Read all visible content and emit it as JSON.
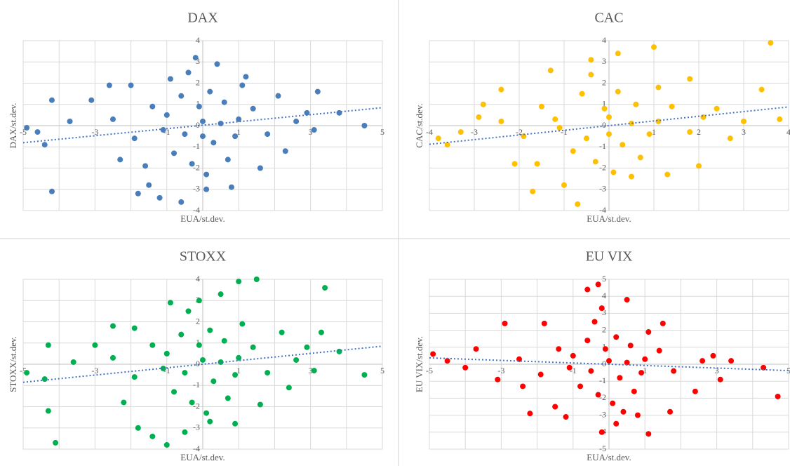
{
  "chart_data": [
    {
      "type": "scatter",
      "title": "DAX",
      "xlabel": "EUA/st.dev.",
      "ylabel": "DAX/st.dev.",
      "color": "#4a7ebb",
      "xlim": [
        -5,
        5
      ],
      "ylim": [
        -4,
        4
      ],
      "xticks": [
        -5,
        -3,
        -1,
        1,
        3,
        5
      ],
      "x_minor_ticks": [
        -4,
        -2,
        2,
        4
      ],
      "yticks": [
        -4,
        -3,
        -2,
        -1,
        0,
        1,
        2,
        3,
        4
      ],
      "grid": true,
      "trendline": {
        "slope": 0.165,
        "intercept": 0.02
      },
      "x": [
        -4.9,
        -4.4,
        -4.2,
        -4.2,
        -4.6,
        -3.7,
        -3.1,
        -2.6,
        -2.3,
        -2.0,
        -1.8,
        -1.5,
        -1.2,
        -0.9,
        -0.6,
        -0.2,
        0.1,
        0.4,
        0.8,
        1.2,
        1.6,
        2.1,
        2.3,
        2.9,
        3.1,
        3.2,
        4.5,
        3.8,
        -1.0,
        -0.5,
        0,
        0.3,
        0.6,
        -0.8,
        1.0,
        -1.4,
        0.2,
        -0.3,
        0.9,
        1.4,
        -1.9,
        -0.1,
        0.5,
        -0.6,
        1.8,
        -1.1,
        0.7,
        -2.5,
        2.6,
        -0.4,
        0.1,
        1.1,
        -1.6,
        0.0
      ],
      "values": [
        -0.1,
        -0.9,
        1.2,
        -3.1,
        -0.3,
        0.2,
        1.2,
        1.9,
        -1.6,
        1.9,
        -3.2,
        -2.8,
        -3.4,
        2.2,
        -3.6,
        3.2,
        -3.0,
        2.9,
        -2.9,
        2.3,
        -2.0,
        1.4,
        -1.2,
        0.6,
        -0.2,
        1.6,
        0.0,
        0.6,
        0.5,
        -0.4,
        0.2,
        -0.8,
        1.1,
        -1.3,
        0.3,
        0.9,
        1.6,
        -1.8,
        -0.5,
        0.8,
        -0.6,
        0.9,
        0.1,
        1.4,
        -0.4,
        -0.2,
        -1.6,
        0.3,
        0.2,
        2.5,
        -2.3,
        1.9,
        -1.9,
        -0.5
      ]
    },
    {
      "type": "scatter",
      "title": "CAC",
      "xlabel": "EUA/st.dev.",
      "ylabel": "CAC/st.dev.",
      "color": "#ffc000",
      "xlim": [
        -4,
        4
      ],
      "ylim": [
        -4,
        4
      ],
      "xticks": [
        -4,
        -3,
        -2,
        -1,
        1,
        2,
        3,
        4
      ],
      "x_minor_ticks": [],
      "yticks": [
        -4,
        -3,
        -2,
        -1,
        0,
        1,
        2,
        3,
        4
      ],
      "grid": true,
      "trendline": {
        "slope": 0.22,
        "intercept": 0.0
      },
      "x": [
        -3.8,
        -3.6,
        -3.3,
        -2.9,
        -2.4,
        -2.1,
        -1.7,
        -1.3,
        -1.0,
        -0.7,
        -0.4,
        0.2,
        0.5,
        1.0,
        1.3,
        1.8,
        2.0,
        2.4,
        2.7,
        3.0,
        3.4,
        3.6,
        3.8,
        -1.2,
        -0.5,
        0,
        0.3,
        0.6,
        -0.8,
        1.1,
        -1.5,
        0.2,
        -0.3,
        0.9,
        1.4,
        -1.9,
        -0.1,
        0.5,
        -0.6,
        1.8,
        -1.1,
        0.7,
        -2.4,
        2.1,
        -0.4,
        0.1,
        1.1,
        -1.6,
        0.0,
        -2.8
      ],
      "values": [
        -0.6,
        -0.9,
        -0.3,
        0.4,
        1.7,
        -1.8,
        -3.1,
        2.6,
        -2.8,
        -3.7,
        3.1,
        3.4,
        -2.4,
        3.7,
        -2.3,
        2.2,
        -1.9,
        0.8,
        -0.6,
        0.2,
        1.7,
        3.9,
        0.3,
        0.3,
        -0.6,
        0.4,
        -0.9,
        1.0,
        -1.2,
        0.2,
        0.9,
        1.6,
        -1.7,
        -0.4,
        0.9,
        -0.5,
        0.8,
        0.1,
        1.5,
        -0.3,
        -0.1,
        -1.5,
        0.2,
        0.4,
        2.4,
        -2.2,
        1.8,
        -1.8,
        -0.4,
        1.0
      ]
    },
    {
      "type": "scatter",
      "title": "STOXX",
      "xlabel": "EUA/st.dev.",
      "ylabel": "STOXX/st.dev.",
      "color": "#00b050",
      "xlim": [
        -5,
        5
      ],
      "ylim": [
        -4,
        4
      ],
      "xticks": [
        -5,
        -3,
        -1,
        1,
        3,
        5
      ],
      "x_minor_ticks": [
        -4,
        -2,
        2,
        4
      ],
      "yticks": [
        -4,
        -3,
        -2,
        -1,
        0,
        1,
        2,
        3,
        4
      ],
      "grid": true,
      "trendline": {
        "slope": 0.17,
        "intercept": 0.0
      },
      "x": [
        -4.9,
        -4.4,
        -4.3,
        -4.3,
        -4.1,
        -3.6,
        -3.0,
        -2.5,
        -2.2,
        -1.9,
        -1.8,
        -1.4,
        -1.0,
        -0.9,
        -0.5,
        -0.1,
        0.2,
        0.5,
        0.9,
        1.0,
        1.5,
        1.6,
        2.2,
        2.4,
        2.9,
        3.1,
        3.3,
        3.4,
        4.5,
        3.8,
        -1.0,
        -0.5,
        0,
        0.3,
        0.6,
        -0.8,
        1.0,
        -1.4,
        0.2,
        -0.3,
        0.9,
        1.4,
        -1.9,
        -0.1,
        0.5,
        -0.6,
        1.8,
        -1.1,
        0.7,
        -2.5,
        2.6,
        -0.4,
        0.1,
        1.1
      ],
      "values": [
        -0.4,
        -0.7,
        0.9,
        -2.2,
        -3.7,
        0.1,
        0.9,
        1.8,
        -1.8,
        1.7,
        -3.0,
        -3.4,
        -3.8,
        2.9,
        -3.2,
        3.0,
        -2.7,
        3.3,
        -2.8,
        3.9,
        4.0,
        -1.9,
        1.5,
        -1.1,
        0.8,
        -0.3,
        1.5,
        3.6,
        -0.5,
        0.6,
        0.5,
        -0.4,
        0.2,
        -0.8,
        1.1,
        -1.3,
        0.3,
        0.9,
        1.6,
        -1.8,
        -0.5,
        0.8,
        -0.6,
        0.9,
        0.1,
        1.4,
        -0.4,
        -0.2,
        -1.6,
        0.3,
        0.2,
        2.5,
        -2.3,
        1.9
      ]
    },
    {
      "type": "scatter",
      "title": "EU VIX",
      "xlabel": "EUA/st.dev.",
      "ylabel": "EU VIX/st.dev.",
      "color": "#ff0000",
      "xlim": [
        -5,
        5
      ],
      "ylim": [
        -5,
        5
      ],
      "xticks": [
        -5,
        -3,
        -1,
        1,
        3,
        5
      ],
      "x_minor_ticks": [
        -4,
        -2,
        2,
        4
      ],
      "yticks": [
        -5,
        -4,
        -3,
        -2,
        -1,
        0,
        1,
        2,
        3,
        4,
        5
      ],
      "grid": true,
      "trendline": {
        "slope": -0.075,
        "intercept": 0.0
      },
      "x": [
        -4.9,
        -4.5,
        -4.0,
        -3.7,
        -3.1,
        -2.9,
        -2.4,
        -2.2,
        -1.8,
        -1.5,
        -1.2,
        -0.6,
        -0.3,
        -0.2,
        0.2,
        0.5,
        0.8,
        1.1,
        1.5,
        1.7,
        2.4,
        2.9,
        3.1,
        3.4,
        4.3,
        4.7,
        -1.0,
        -0.5,
        0,
        0.3,
        0.6,
        -0.8,
        1.0,
        -1.4,
        0.2,
        -0.3,
        0.9,
        1.4,
        -1.9,
        -0.1,
        0.5,
        -0.6,
        1.8,
        -1.1,
        0.7,
        -2.5,
        2.6,
        -0.4,
        0.1,
        1.1,
        -0.2,
        0.4
      ],
      "values": [
        0.6,
        0.2,
        -0.2,
        0.9,
        -0.9,
        2.4,
        -1.3,
        -2.9,
        2.4,
        -2.5,
        -3.1,
        4.4,
        4.7,
        -4.0,
        -3.5,
        3.8,
        -3.0,
        -4.1,
        2.4,
        -2.8,
        -1.6,
        0.5,
        -0.9,
        0.2,
        -0.2,
        -1.9,
        0.5,
        -0.4,
        0.2,
        -0.8,
        1.1,
        -1.3,
        0.3,
        0.9,
        1.6,
        -1.8,
        -0.5,
        0.8,
        -0.6,
        0.9,
        0.1,
        1.4,
        -0.4,
        -0.2,
        -1.6,
        0.3,
        0.2,
        2.5,
        -2.3,
        1.9,
        3.3,
        -2.8
      ]
    }
  ]
}
